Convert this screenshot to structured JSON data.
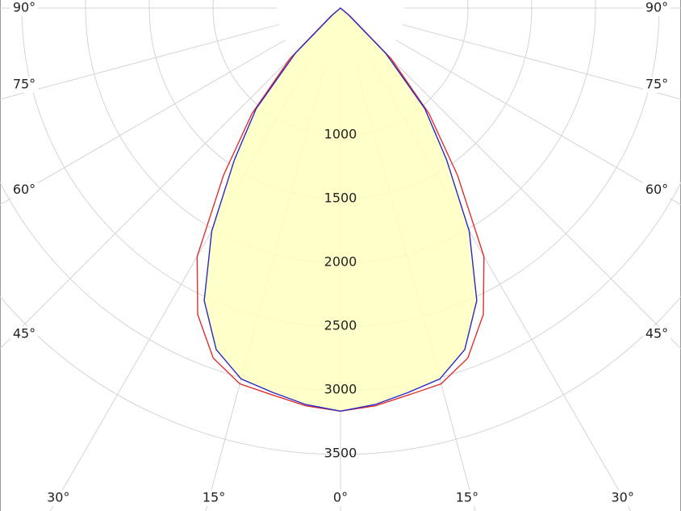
{
  "chart_data": {
    "type": "polar",
    "x": [
      -50,
      -45,
      -40,
      -35,
      -30,
      -25,
      -20,
      -15,
      -10,
      -5,
      0,
      5,
      10,
      15,
      20,
      25,
      30,
      35,
      40,
      45,
      50
    ],
    "series": [
      {
        "color": "#e03030",
        "values": [
          100,
          560,
          1080,
          1600,
          2250,
          2650,
          2920,
          3050,
          3080,
          3130,
          3160,
          3130,
          3080,
          3050,
          2920,
          2650,
          2250,
          1600,
          1080,
          560,
          100
        ]
      },
      {
        "color": "#2828c8",
        "fill": "#ffffc0",
        "values": [
          80,
          500,
          1030,
          1450,
          2020,
          2530,
          2850,
          3010,
          3060,
          3120,
          3160,
          3120,
          3060,
          3010,
          2850,
          2530,
          2020,
          1450,
          1030,
          500,
          80
        ]
      }
    ],
    "rlim": [
      0,
      4000
    ],
    "rticks": [
      1000,
      1500,
      2000,
      2500,
      3000,
      3500
    ],
    "angle_ticks": [
      {
        "value": -90,
        "label": "90°"
      },
      {
        "value": -75,
        "label": "75°"
      },
      {
        "value": -60,
        "label": "60°"
      },
      {
        "value": -45,
        "label": "45°"
      },
      {
        "value": -30,
        "label": "30°"
      },
      {
        "value": -15,
        "label": "15°"
      },
      {
        "value": 0,
        "label": "0°"
      },
      {
        "value": 15,
        "label": "15°"
      },
      {
        "value": 30,
        "label": "30°"
      },
      {
        "value": 45,
        "label": "45°"
      },
      {
        "value": 60,
        "label": "60°"
      },
      {
        "value": 75,
        "label": "75°"
      },
      {
        "value": 90,
        "label": "90°"
      }
    ],
    "grid": true
  }
}
